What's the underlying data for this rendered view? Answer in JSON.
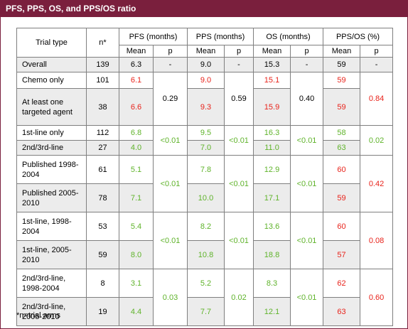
{
  "title": "PFS, PPS, OS, and PPS/OS ratio",
  "header": {
    "trial_type": "Trial type",
    "n": "n*",
    "pfs": "PFS (months)",
    "pps": "PPS (months)",
    "os": "OS (months)",
    "ratio": "PPS/OS (%)",
    "mean": "Mean",
    "p": "p"
  },
  "overall": {
    "label": "Overall",
    "n": "139",
    "pfs": "6.3",
    "pfs_p": "-",
    "pps": "9.0",
    "pps_p": "-",
    "os": "15.3",
    "os_p": "-",
    "ratio": "59",
    "ratio_p": "-"
  },
  "groups": [
    {
      "pfs_p": "0.29",
      "pps_p": "0.59",
      "os_p": "0.40",
      "ratio_p": "0.84",
      "rows": [
        {
          "label": "Chemo only",
          "n": "101",
          "pfs": "6.1",
          "pps": "9.0",
          "os": "15.1",
          "ratio": "59"
        },
        {
          "label": "At least one targeted agent",
          "n": "38",
          "pfs": "6.6",
          "pps": "9.3",
          "os": "15.9",
          "ratio": "59"
        }
      ]
    },
    {
      "pfs_p": "<0.01",
      "pps_p": "<0.01",
      "os_p": "<0.01",
      "ratio_p": "0.02",
      "rows": [
        {
          "label": "1st-line only",
          "n": "112",
          "pfs": "6.8",
          "pps": "9.5",
          "os": "16.3",
          "ratio": "58"
        },
        {
          "label": "2nd/3rd-line",
          "n": "27",
          "pfs": "4.0",
          "pps": "7.0",
          "os": "11.0",
          "ratio": "63"
        }
      ]
    },
    {
      "pfs_p": "<0.01",
      "pps_p": "<0.01",
      "os_p": "<0.01",
      "ratio_p": "0.42",
      "rows": [
        {
          "label": "Published 1998-2004",
          "n": "61",
          "pfs": "5.1",
          "pps": "7.8",
          "os": "12.9",
          "ratio": "60"
        },
        {
          "label": "Published 2005-2010",
          "n": "78",
          "pfs": "7.1",
          "pps": "10.0",
          "os": "17.1",
          "ratio": "59"
        }
      ]
    },
    {
      "pfs_p": "<0.01",
      "pps_p": "<0.01",
      "os_p": "<0.01",
      "ratio_p": "0.08",
      "rows": [
        {
          "label": "1st-line, 1998-2004",
          "n": "53",
          "pfs": "5.4",
          "pps": "8.2",
          "os": "13.6",
          "ratio": "60"
        },
        {
          "label": "1st-line, 2005-2010",
          "n": "59",
          "pfs": "8.0",
          "pps": "10.8",
          "os": "18.8",
          "ratio": "57"
        }
      ]
    },
    {
      "pfs_p": "0.03",
      "pps_p": "0.02",
      "os_p": "<0.01",
      "ratio_p": "0.60",
      "rows": [
        {
          "label": "2nd/3rd-line, 1998-2004",
          "n": "8",
          "pfs": "3.1",
          "pps": "5.2",
          "os": "8.3",
          "ratio": "62"
        },
        {
          "label": "2nd/3rd-line, 2005-2010",
          "n": "19",
          "pfs": "4.4",
          "pps": "7.7",
          "os": "12.1",
          "ratio": "63"
        }
      ]
    }
  ],
  "footnote": "*n=trial arms",
  "colors": {
    "accent": "#7a1f3d",
    "red": "#e8231b",
    "green": "#5fb32a",
    "shade": "#ececec"
  }
}
